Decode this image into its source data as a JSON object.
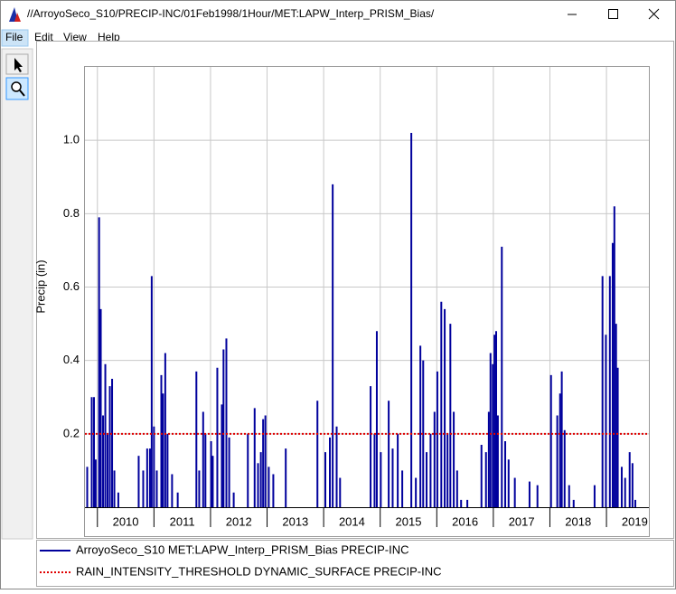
{
  "window": {
    "title": "//ArroyoSeco_S10/PRECIP-INC/01Feb1998/1Hour/MET:LAPW_Interp_PRISM_Bias/",
    "menu": [
      "File",
      "Edit",
      "View",
      "Help"
    ]
  },
  "chart_data": {
    "type": "bar",
    "y_label": "Precip (in)",
    "xlim": [
      2009.78,
      2019.75
    ],
    "xticks": [
      2010,
      2011,
      2012,
      2013,
      2014,
      2015,
      2016,
      2017,
      2018,
      2019
    ],
    "ylim": [
      0,
      1.2
    ],
    "yticks": [
      0.2,
      0.4,
      0.6,
      0.8,
      {
        "value": 1,
        "label": "1.0"
      }
    ],
    "grid": true,
    "series": [
      {
        "name": "ArroyoSeco_S10 MET:LAPW_Interp_PRISM_Bias PRECIP-INC",
        "color": "#00009c",
        "style": "bar",
        "x": [
          2009.82,
          2009.9,
          2009.94,
          2009.97,
          2010.03,
          2010.06,
          2010.1,
          2010.14,
          2010.18,
          2010.22,
          2010.26,
          2010.3,
          2010.37,
          2010.73,
          2010.81,
          2010.88,
          2010.93,
          2010.96,
          2011.0,
          2011.05,
          2011.13,
          2011.16,
          2011.2,
          2011.24,
          2011.32,
          2011.42,
          2011.75,
          2011.8,
          2011.87,
          2011.91,
          2012.01,
          2012.04,
          2012.12,
          2012.2,
          2012.23,
          2012.28,
          2012.33,
          2012.41,
          2012.66,
          2012.78,
          2012.84,
          2012.89,
          2012.93,
          2012.97,
          2013.03,
          2013.11,
          2013.33,
          2013.89,
          2014.03,
          2014.11,
          2014.16,
          2014.23,
          2014.29,
          2014.83,
          2014.9,
          2014.94,
          2015.01,
          2015.15,
          2015.22,
          2015.31,
          2015.39,
          2015.55,
          2015.63,
          2015.71,
          2015.76,
          2015.82,
          2015.89,
          2015.96,
          2016.01,
          2016.08,
          2016.14,
          2016.19,
          2016.24,
          2016.3,
          2016.36,
          2016.43,
          2016.54,
          2016.79,
          2016.87,
          2016.92,
          2016.95,
          2016.99,
          2017.02,
          2017.05,
          2017.08,
          2017.15,
          2017.21,
          2017.27,
          2017.38,
          2017.64,
          2017.78,
          2018.02,
          2018.13,
          2018.18,
          2018.21,
          2018.26,
          2018.34,
          2018.42,
          2018.79,
          2018.93,
          2018.99,
          2019.06,
          2019.11,
          2019.14,
          2019.17,
          2019.2,
          2019.27,
          2019.33,
          2019.41,
          2019.46,
          2019.51
        ],
        "values": [
          0.11,
          0.3,
          0.3,
          0.13,
          0.79,
          0.54,
          0.25,
          0.39,
          0.2,
          0.33,
          0.35,
          0.1,
          0.04,
          0.14,
          0.1,
          0.16,
          0.16,
          0.63,
          0.22,
          0.1,
          0.36,
          0.31,
          0.42,
          0.2,
          0.09,
          0.04,
          0.37,
          0.1,
          0.26,
          0.2,
          0.18,
          0.14,
          0.38,
          0.28,
          0.43,
          0.46,
          0.19,
          0.04,
          0.2,
          0.27,
          0.12,
          0.15,
          0.24,
          0.25,
          0.11,
          0.09,
          0.16,
          0.29,
          0.15,
          0.19,
          0.88,
          0.22,
          0.08,
          0.33,
          0.2,
          0.48,
          0.15,
          0.29,
          0.16,
          0.2,
          0.1,
          1.02,
          0.08,
          0.44,
          0.4,
          0.15,
          0.2,
          0.26,
          0.37,
          0.56,
          0.54,
          0.2,
          0.5,
          0.26,
          0.1,
          0.02,
          0.02,
          0.17,
          0.15,
          0.26,
          0.42,
          0.39,
          0.47,
          0.48,
          0.25,
          0.71,
          0.18,
          0.13,
          0.08,
          0.07,
          0.06,
          0.36,
          0.25,
          0.31,
          0.37,
          0.21,
          0.06,
          0.02,
          0.06,
          0.63,
          0.47,
          0.63,
          0.72,
          0.82,
          0.5,
          0.38,
          0.11,
          0.08,
          0.15,
          0.12,
          0.02
        ]
      },
      {
        "name": "RAIN_INTENSITY_THRESHOLD DYNAMIC_SURFACE PRECIP-INC",
        "color": "#e00000",
        "style": "dotted",
        "x": [
          2009.78,
          2019.75
        ],
        "values": [
          0.2,
          0.2
        ]
      }
    ]
  }
}
